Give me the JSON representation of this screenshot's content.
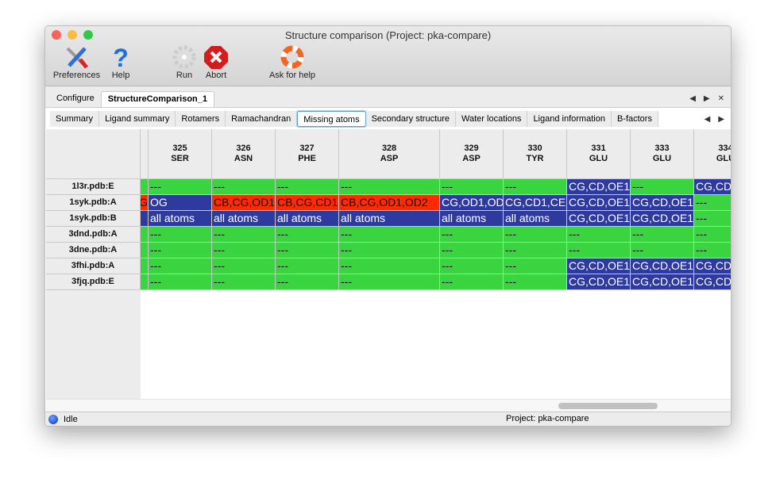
{
  "window": {
    "title": "Structure comparison (Project: pka-compare)"
  },
  "toolbar": {
    "preferences": "Preferences",
    "help": "Help",
    "run": "Run",
    "abort": "Abort",
    "ask_help": "Ask for help"
  },
  "tabs": [
    "Configure",
    "StructureComparison_1"
  ],
  "active_tab": 1,
  "subtabs": [
    "Summary",
    "Ligand summary",
    "Rotamers",
    "Ramachandran",
    "Missing atoms",
    "Secondary structure",
    "Water locations",
    "Ligand information",
    "B-factors"
  ],
  "active_subtab": 4,
  "colors": {
    "green": "#3bd441",
    "blue": "#2f3a9f",
    "red": "#ff2a00"
  },
  "table": {
    "columns": [
      {
        "num": "",
        "res": ""
      },
      {
        "num": "325",
        "res": "SER"
      },
      {
        "num": "326",
        "res": "ASN"
      },
      {
        "num": "327",
        "res": "PHE"
      },
      {
        "num": "328",
        "res": "ASP"
      },
      {
        "num": "329",
        "res": "ASP"
      },
      {
        "num": "330",
        "res": "TYR"
      },
      {
        "num": "331",
        "res": "GLU"
      },
      {
        "num": "333",
        "res": "GLU"
      },
      {
        "num": "334",
        "res": "GLU"
      }
    ],
    "rows": [
      {
        "name": "1l3r.pdb:E",
        "cells": [
          [
            "",
            "green"
          ],
          [
            "---",
            "green"
          ],
          [
            "---",
            "green"
          ],
          [
            "---",
            "green"
          ],
          [
            "---",
            "green"
          ],
          [
            "---",
            "green"
          ],
          [
            "---",
            "green"
          ],
          [
            "CG,CD,OE1",
            "blue"
          ],
          [
            "---",
            "green"
          ],
          [
            "CG,CD",
            "blue"
          ]
        ]
      },
      {
        "name": "1syk.pdb:A",
        "cells": [
          [
            "G",
            "red"
          ],
          [
            "OG",
            "blue"
          ],
          [
            "CB,CG,OD1",
            "red"
          ],
          [
            "CB,CG,CD1",
            "red"
          ],
          [
            "CB,CG,OD1,OD2",
            "red"
          ],
          [
            "CG,OD1,OD",
            "blue"
          ],
          [
            "CG,CD1,CE",
            "blue"
          ],
          [
            "CG,CD,OE1",
            "blue"
          ],
          [
            "CG,CD,OE1",
            "blue"
          ],
          [
            "---",
            "green"
          ]
        ]
      },
      {
        "name": "1syk.pdb:B",
        "cells": [
          [
            "",
            "blue"
          ],
          [
            "all atoms",
            "blue"
          ],
          [
            "all atoms",
            "blue"
          ],
          [
            "all atoms",
            "blue"
          ],
          [
            "all atoms",
            "blue"
          ],
          [
            "all atoms",
            "blue"
          ],
          [
            "all atoms",
            "blue"
          ],
          [
            "CG,CD,OE1",
            "blue"
          ],
          [
            "CG,CD,OE1",
            "blue"
          ],
          [
            "---",
            "green"
          ]
        ]
      },
      {
        "name": "3dnd.pdb:A",
        "cells": [
          [
            "",
            "green"
          ],
          [
            "---",
            "green"
          ],
          [
            "---",
            "green"
          ],
          [
            "---",
            "green"
          ],
          [
            "---",
            "green"
          ],
          [
            "---",
            "green"
          ],
          [
            "---",
            "green"
          ],
          [
            "---",
            "green"
          ],
          [
            "---",
            "green"
          ],
          [
            "---",
            "green"
          ]
        ]
      },
      {
        "name": "3dne.pdb:A",
        "cells": [
          [
            "",
            "green"
          ],
          [
            "---",
            "green"
          ],
          [
            "---",
            "green"
          ],
          [
            "---",
            "green"
          ],
          [
            "---",
            "green"
          ],
          [
            "---",
            "green"
          ],
          [
            "---",
            "green"
          ],
          [
            "---",
            "green"
          ],
          [
            "---",
            "green"
          ],
          [
            "---",
            "green"
          ]
        ]
      },
      {
        "name": "3fhi.pdb:A",
        "cells": [
          [
            "",
            "green"
          ],
          [
            "---",
            "green"
          ],
          [
            "---",
            "green"
          ],
          [
            "---",
            "green"
          ],
          [
            "---",
            "green"
          ],
          [
            "---",
            "green"
          ],
          [
            "---",
            "green"
          ],
          [
            "CG,CD,OE1",
            "blue"
          ],
          [
            "CG,CD,OE1",
            "blue"
          ],
          [
            "CG,CD",
            "blue"
          ]
        ]
      },
      {
        "name": "3fjq.pdb:E",
        "cells": [
          [
            "",
            "green"
          ],
          [
            "---",
            "green"
          ],
          [
            "---",
            "green"
          ],
          [
            "---",
            "green"
          ],
          [
            "---",
            "green"
          ],
          [
            "---",
            "green"
          ],
          [
            "---",
            "green"
          ],
          [
            "CG,CD,OE1",
            "blue"
          ],
          [
            "CG,CD,OE1",
            "blue"
          ],
          [
            "CG,CD",
            "blue"
          ]
        ]
      }
    ]
  },
  "status": {
    "state": "Idle",
    "project": "Project: pka-compare"
  }
}
